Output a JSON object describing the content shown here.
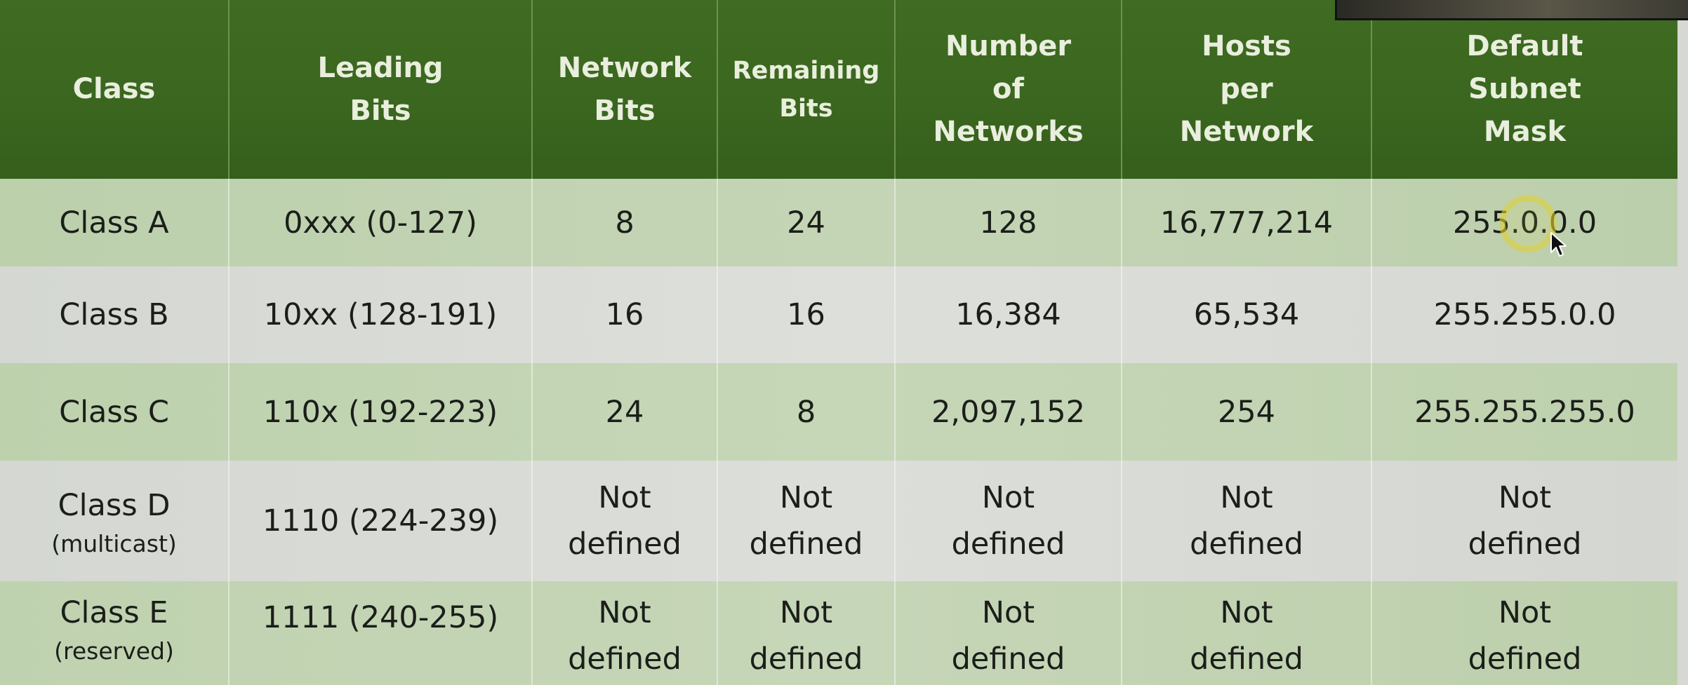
{
  "table": {
    "headers": [
      "Class",
      "Leading\nBits",
      "Network\nBits",
      "Remaining\nBits",
      "Number\nof\nNetworks",
      "Hosts\nper\nNetwork",
      "Default\nSubnet\nMask"
    ],
    "rows": [
      {
        "cls": "Class A",
        "note": "",
        "leading": "0xxx (0-127)",
        "net_bits": "8",
        "rem_bits": "24",
        "networks": "128",
        "hosts": "16,777,214",
        "mask": "255.0.0.0"
      },
      {
        "cls": "Class B",
        "note": "",
        "leading": "10xx (128-191)",
        "net_bits": "16",
        "rem_bits": "16",
        "networks": "16,384",
        "hosts": "65,534",
        "mask": "255.255.0.0"
      },
      {
        "cls": "Class C",
        "note": "",
        "leading": "110x (192-223)",
        "net_bits": "24",
        "rem_bits": "8",
        "networks": "2,097,152",
        "hosts": "254",
        "mask": "255.255.255.0"
      },
      {
        "cls": "Class D",
        "note": "(multicast)",
        "leading": "1110 (224-239)",
        "net_bits": "Not\ndefined",
        "rem_bits": "Not\ndefined",
        "networks": "Not\ndefined",
        "hosts": "Not\ndefined",
        "mask": "Not\ndefined"
      },
      {
        "cls": "Class E",
        "note": "(reserved)",
        "leading": "1111 (240-255)",
        "net_bits": "Not\ndefined",
        "rem_bits": "Not\ndefined",
        "networks": "Not\ndefined",
        "hosts": "Not\ndefined",
        "mask": "Not\ndefined"
      }
    ]
  },
  "colors": {
    "header_bg": "#3a661f",
    "header_text": "#e9eedd",
    "green_row": "#c2d4b3",
    "gray_row": "#d9dbd7",
    "cursor_halo": "#ded034"
  }
}
